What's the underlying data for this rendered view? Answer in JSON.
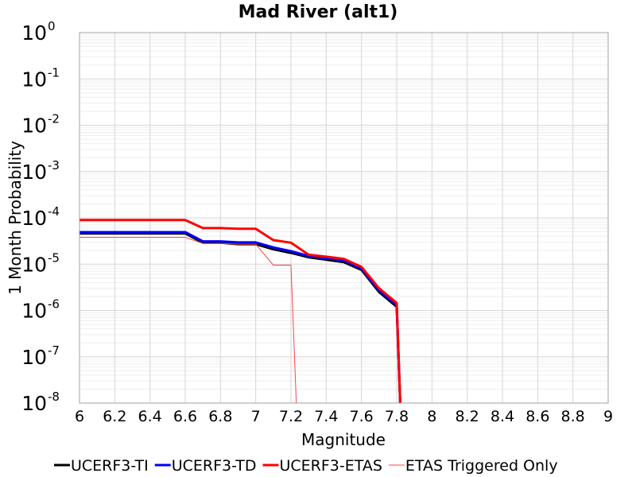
{
  "chart_data": {
    "type": "line",
    "title": "Mad River (alt1)",
    "xlabel": "Magnitude",
    "ylabel": "1 Month Probability",
    "xlim": [
      6,
      9
    ],
    "ylim": [
      1e-08,
      1
    ],
    "y_scale": "log",
    "grid": true,
    "legend_position": "bottom",
    "x_ticks": [
      "6",
      "6.2",
      "6.4",
      "6.6",
      "6.8",
      "7",
      "7.2",
      "7.4",
      "7.6",
      "7.8",
      "8",
      "8.2",
      "8.4",
      "8.6",
      "8.8",
      "9"
    ],
    "y_ticks": [
      {
        "base": "10",
        "exp": "0"
      },
      {
        "base": "10",
        "exp": "-1"
      },
      {
        "base": "10",
        "exp": "-2"
      },
      {
        "base": "10",
        "exp": "-3"
      },
      {
        "base": "10",
        "exp": "-4"
      },
      {
        "base": "10",
        "exp": "-5"
      },
      {
        "base": "10",
        "exp": "-6"
      },
      {
        "base": "10",
        "exp": "-7"
      },
      {
        "base": "10",
        "exp": "-8"
      }
    ],
    "series": [
      {
        "name": "UCERF3-TI",
        "color": "#000000",
        "width": 3,
        "points": [
          [
            6.0,
            4.6e-05
          ],
          [
            6.6,
            4.6e-05
          ],
          [
            6.7,
            2.9e-05
          ],
          [
            6.8,
            2.9e-05
          ],
          [
            6.9,
            2.7e-05
          ],
          [
            7.0,
            2.7e-05
          ],
          [
            7.1,
            2.1e-05
          ],
          [
            7.2,
            1.75e-05
          ],
          [
            7.3,
            1.4e-05
          ],
          [
            7.4,
            1.25e-05
          ],
          [
            7.5,
            1.1e-05
          ],
          [
            7.6,
            7.5e-06
          ],
          [
            7.7,
            2.5e-06
          ],
          [
            7.8,
            1.2e-06
          ],
          [
            7.82,
            1e-08
          ]
        ]
      },
      {
        "name": "UCERF3-TD",
        "color": "#0000ff",
        "width": 3,
        "points": [
          [
            6.0,
            4.9e-05
          ],
          [
            6.6,
            4.9e-05
          ],
          [
            6.7,
            3.1e-05
          ],
          [
            6.8,
            3.1e-05
          ],
          [
            6.9,
            2.95e-05
          ],
          [
            7.0,
            2.95e-05
          ],
          [
            7.1,
            2.3e-05
          ],
          [
            7.2,
            1.9e-05
          ],
          [
            7.3,
            1.5e-05
          ],
          [
            7.4,
            1.35e-05
          ],
          [
            7.5,
            1.2e-05
          ],
          [
            7.6,
            8e-06
          ],
          [
            7.7,
            2.7e-06
          ],
          [
            7.8,
            1.3e-06
          ],
          [
            7.82,
            1e-08
          ]
        ]
      },
      {
        "name": "UCERF3-ETAS",
        "color": "#ff0000",
        "width": 3,
        "points": [
          [
            6.0,
            9e-05
          ],
          [
            6.6,
            9e-05
          ],
          [
            6.7,
            6e-05
          ],
          [
            6.8,
            6e-05
          ],
          [
            6.9,
            5.8e-05
          ],
          [
            7.0,
            5.8e-05
          ],
          [
            7.1,
            3.3e-05
          ],
          [
            7.2,
            2.9e-05
          ],
          [
            7.3,
            1.6e-05
          ],
          [
            7.4,
            1.45e-05
          ],
          [
            7.5,
            1.3e-05
          ],
          [
            7.6,
            8.7e-06
          ],
          [
            7.7,
            3e-06
          ],
          [
            7.8,
            1.45e-06
          ],
          [
            7.82,
            1e-08
          ]
        ]
      },
      {
        "name": "ETAS Triggered Only",
        "color": "#ff4444",
        "width": 1,
        "points": [
          [
            6.0,
            3.8e-05
          ],
          [
            6.6,
            3.8e-05
          ],
          [
            6.7,
            2.8e-05
          ],
          [
            6.8,
            2.8e-05
          ],
          [
            6.9,
            2.7e-05
          ],
          [
            7.0,
            2.7e-05
          ],
          [
            7.1,
            9.5e-06
          ],
          [
            7.2,
            9.5e-06
          ],
          [
            7.23,
            1e-08
          ]
        ]
      }
    ]
  }
}
